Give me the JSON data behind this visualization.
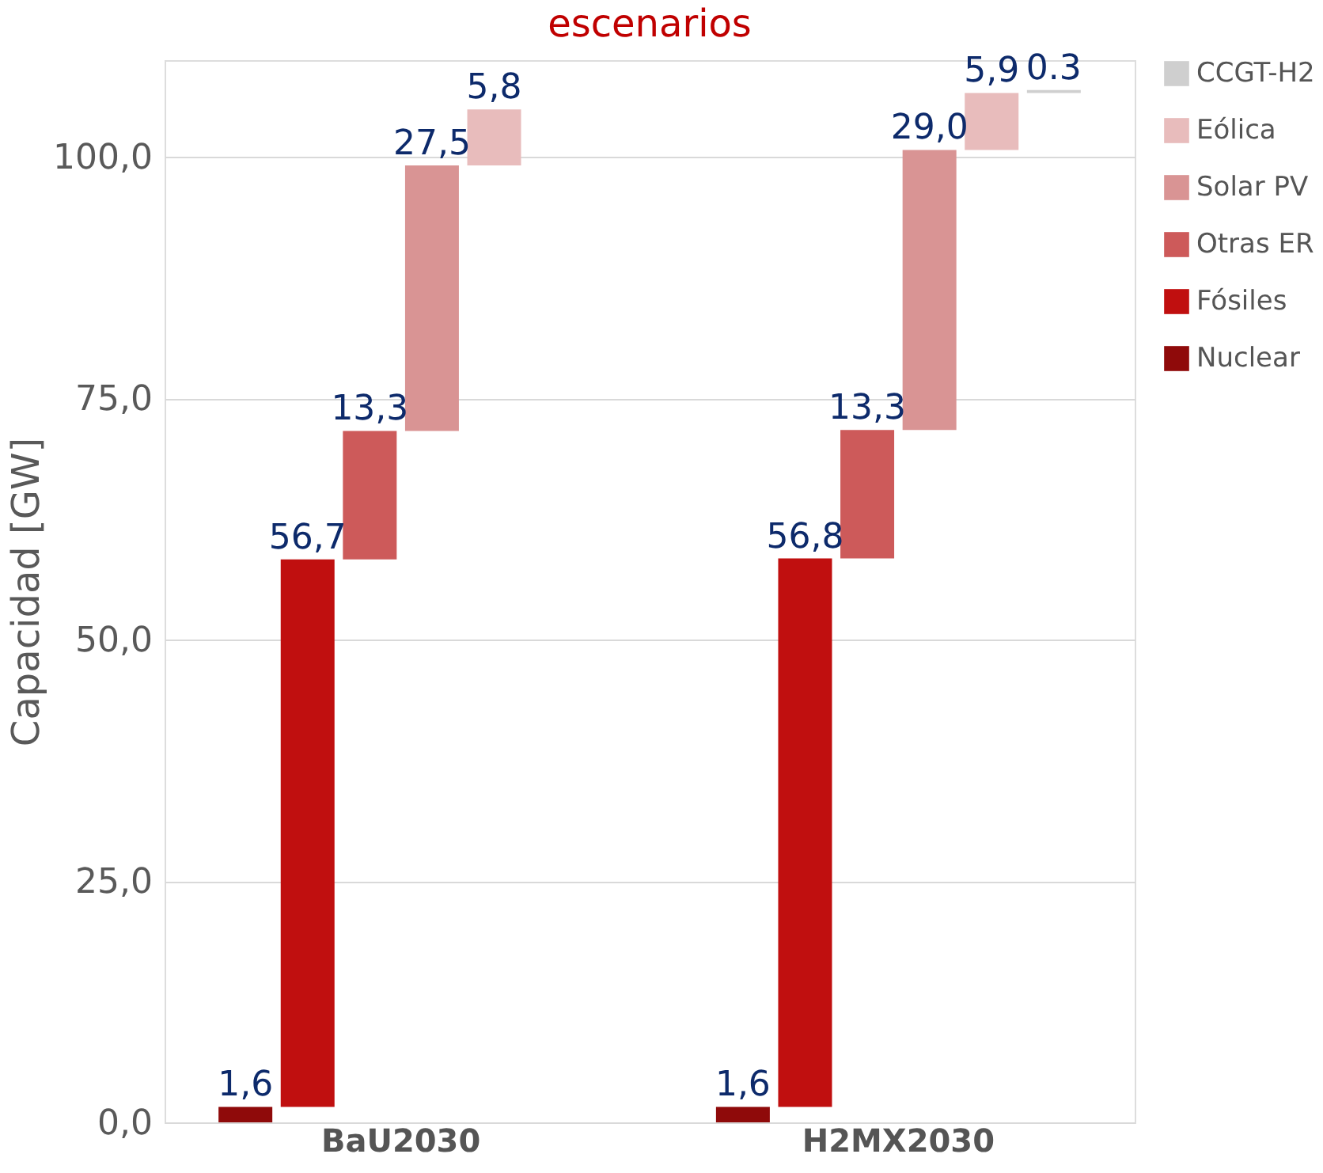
{
  "chart_data": {
    "type": "bar",
    "title": "escenarios",
    "ylabel": "Capacidad [GW]",
    "categories": [
      "BaU2030",
      "H2MX2030"
    ],
    "series": [
      {
        "name": "Nuclear",
        "color": "#8f0a0a",
        "values": [
          1.6,
          1.6
        ],
        "base": [
          0,
          0
        ],
        "value_labels": [
          "1,6",
          "1,6"
        ]
      },
      {
        "name": "Fósiles",
        "color": "#c00f0f",
        "values": [
          56.7,
          56.8
        ],
        "base": [
          1.6,
          1.6
        ],
        "value_labels": [
          "56,7",
          "56,8"
        ]
      },
      {
        "name": "Otras ER",
        "color": "#cd5a5a",
        "values": [
          13.3,
          13.3
        ],
        "base": [
          58.3,
          58.4
        ],
        "value_labels": [
          "13,3",
          "13,3"
        ]
      },
      {
        "name": "Solar PV",
        "color": "#d99494",
        "values": [
          27.5,
          29.0
        ],
        "base": [
          71.6,
          71.7
        ],
        "value_labels": [
          "27,5",
          "29,0"
        ]
      },
      {
        "name": "Eólica",
        "color": "#e8bcbc",
        "values": [
          5.8,
          5.9
        ],
        "base": [
          99.1,
          100.7
        ],
        "value_labels": [
          "5,8",
          "5,9"
        ]
      },
      {
        "name": "CCGT-H2",
        "color": "#cfcfcf",
        "values": [
          null,
          0.3
        ],
        "base": [
          null,
          106.6
        ],
        "value_labels": [
          null,
          "0.3"
        ]
      }
    ],
    "ylim": [
      0,
      110
    ],
    "yticks": [
      {
        "value": 0,
        "label": "0,0"
      },
      {
        "value": 25,
        "label": "25,0"
      },
      {
        "value": 50,
        "label": "50,0"
      },
      {
        "value": 75,
        "label": "75,0"
      },
      {
        "value": 100,
        "label": "100,0"
      }
    ],
    "grid": "y",
    "legend": "right"
  }
}
